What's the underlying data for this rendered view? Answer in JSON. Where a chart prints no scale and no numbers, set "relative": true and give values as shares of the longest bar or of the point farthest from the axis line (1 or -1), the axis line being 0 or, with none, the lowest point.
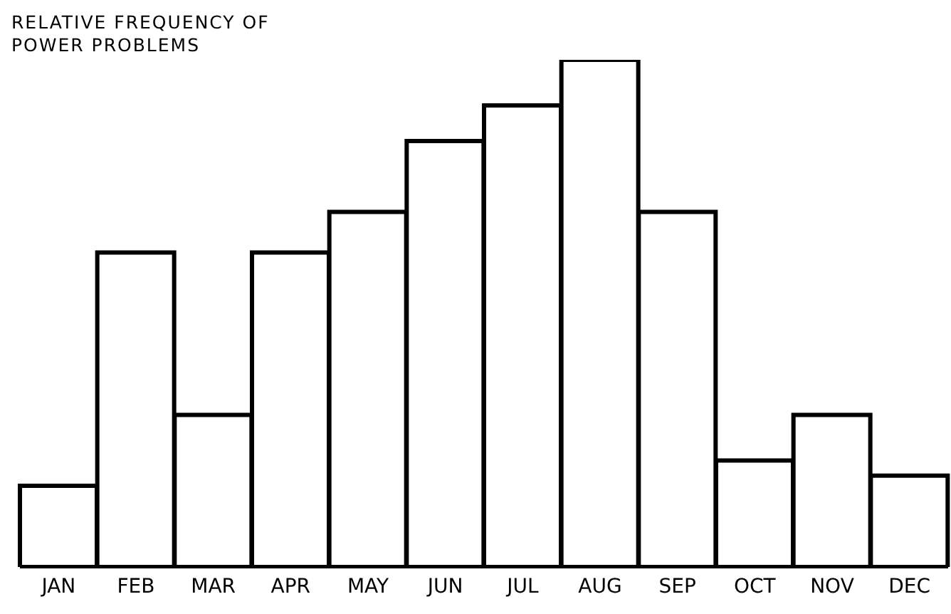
{
  "chart_data": {
    "type": "bar",
    "title": "RELATIVE FREQUENCY OF POWER PROBLEMS",
    "relative": true,
    "categories": [
      "JAN",
      "FEB",
      "MAR",
      "APR",
      "MAY",
      "JUN",
      "JUL",
      "AUG",
      "SEP",
      "OCT",
      "NOV",
      "DEC"
    ],
    "values": [
      0.16,
      0.62,
      0.3,
      0.62,
      0.7,
      0.84,
      0.91,
      1,
      0.7,
      0.21,
      0.3,
      0.18
    ]
  }
}
